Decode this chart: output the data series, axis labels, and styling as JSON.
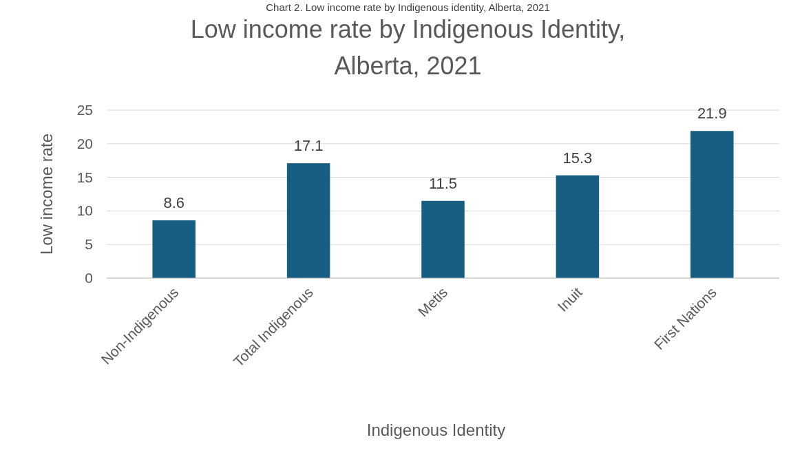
{
  "chart_data": {
    "type": "bar",
    "title": "Low income rate by Indigenous Identity, Alberta, 2021",
    "annotations": [
      "Chart 2. Low income rate by Indigenous identity, Alberta, 2021"
    ],
    "xlabel": "Indigenous Identity",
    "ylabel": "Low income rate",
    "categories": [
      "Non-Indigenous",
      "Total Indigenous",
      "Metis",
      "Inuit",
      "First Nations"
    ],
    "values": [
      8.6,
      17.1,
      11.5,
      15.3,
      21.9
    ],
    "color": "#175f82",
    "ylim": [
      0,
      25
    ],
    "yticks": [
      0,
      5,
      10,
      15,
      20,
      25
    ],
    "grid": "y",
    "data_labels": true
  }
}
